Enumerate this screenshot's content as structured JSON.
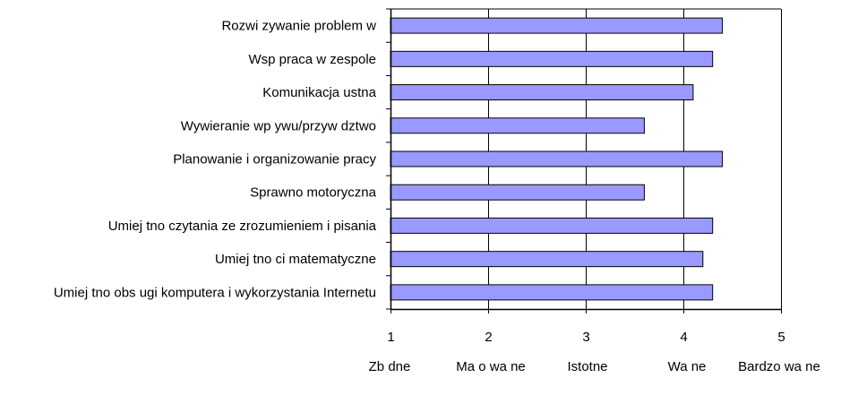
{
  "chart_data": {
    "type": "bar",
    "orientation": "horizontal",
    "title": "",
    "xlabel": "",
    "ylabel": "",
    "categories": [
      "Rozwi zywanie problem w",
      "Wsp praca w zespole",
      "Komunikacja ustna",
      "Wywieranie wp ywu/przyw dztwo",
      "Planowanie i organizowanie pracy",
      "Sprawno motoryczna",
      "Umiej tno czytania ze zrozumieniem i pisania",
      "Umiej tno ci matematyczne",
      "Umiej tno obs ugi komputera i wykorzystania Internetu"
    ],
    "values": [
      4.4,
      4.3,
      4.1,
      3.6,
      4.4,
      3.6,
      4.3,
      4.2,
      4.3
    ],
    "xlim": [
      1,
      5
    ],
    "xticks": [
      "1",
      "2",
      "3",
      "4",
      "5"
    ],
    "scale_labels": [
      "Zb dne",
      "Ma o wa ne",
      "Istotne",
      "Wa ne",
      "Bardzo wa ne"
    ],
    "grid": "vertical",
    "legend": "none",
    "colors": {
      "bar_fill": "#9999ff",
      "bar_stroke": "#000000",
      "grid": "#000000",
      "background": "#ffffff"
    }
  }
}
